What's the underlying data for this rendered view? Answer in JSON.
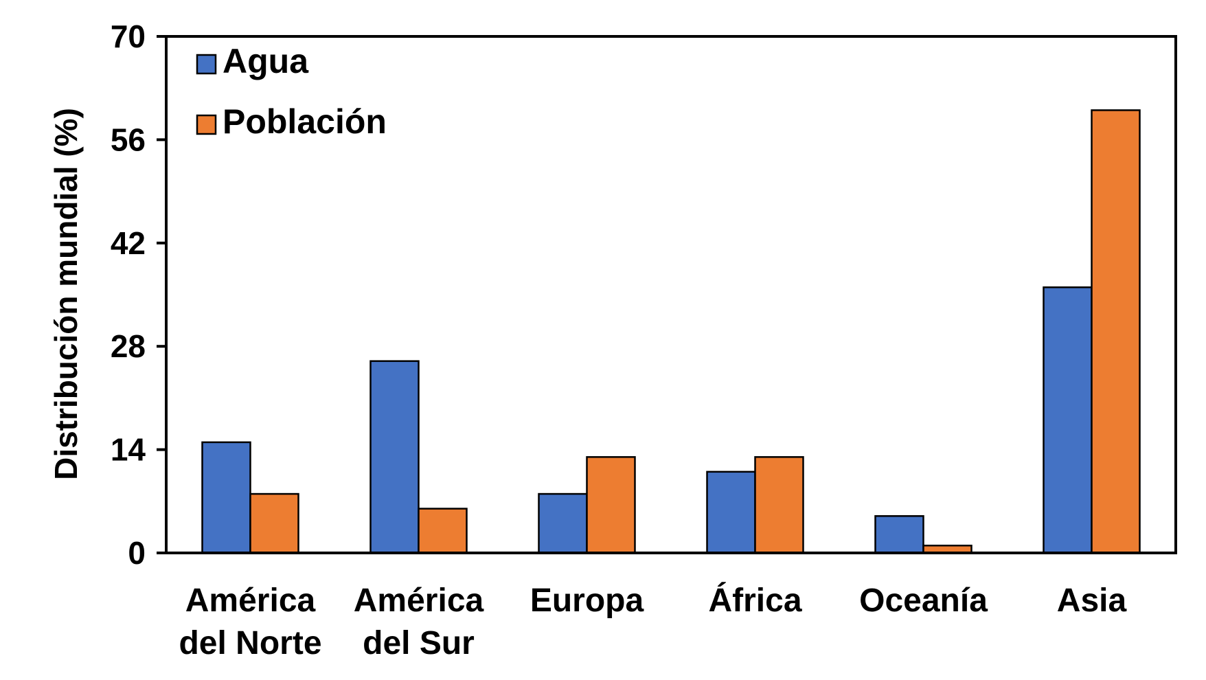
{
  "chart_data": {
    "type": "bar",
    "title": "",
    "xlabel": "",
    "ylabel": "Distribución mundial (%)",
    "ylim": [
      0,
      70
    ],
    "yticks": [
      0,
      14,
      28,
      42,
      56,
      70
    ],
    "categories": [
      [
        "América",
        "del Norte"
      ],
      [
        "América",
        "del Sur"
      ],
      [
        "Europa"
      ],
      [
        "África"
      ],
      [
        "Oceanía"
      ],
      [
        "Asia"
      ]
    ],
    "series": [
      {
        "name": "Agua",
        "color": "#4472C4",
        "values": [
          15,
          26,
          8,
          11,
          5,
          36
        ]
      },
      {
        "name": "Población",
        "color": "#ED7D31",
        "values": [
          8,
          6,
          13,
          13,
          1,
          60
        ]
      }
    ],
    "legend": "top-left",
    "grid": false
  }
}
